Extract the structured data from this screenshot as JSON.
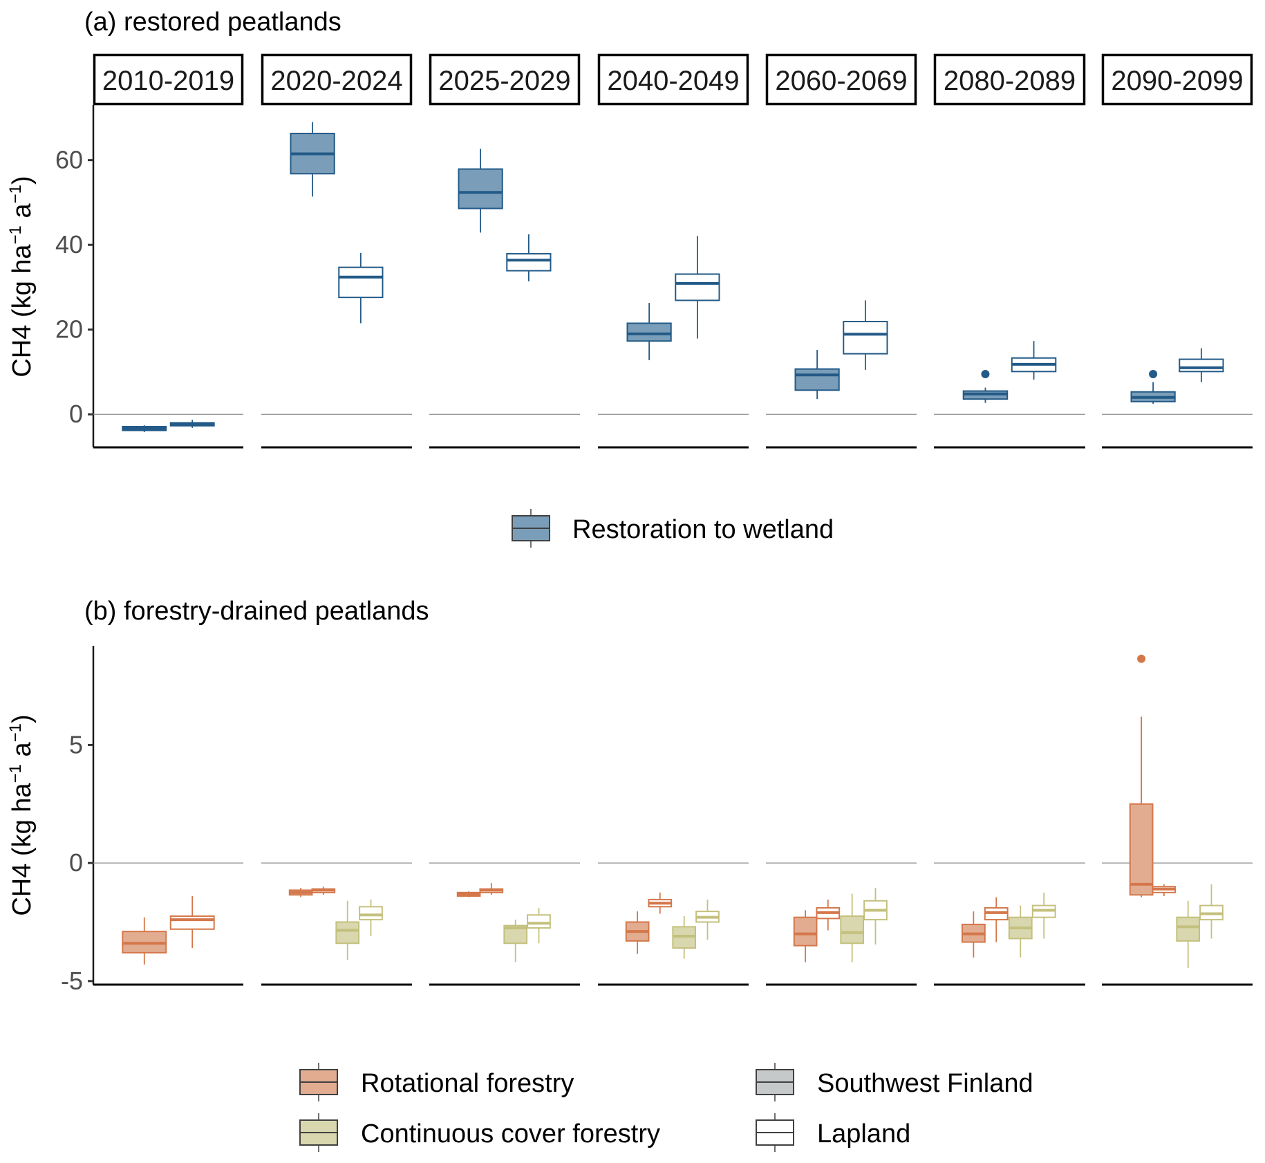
{
  "chart_data": [
    {
      "id": "a",
      "type": "box",
      "title": "(a) restored peatlands",
      "ylabel": "CH4 (kg ha⁻¹ a⁻¹)",
      "ylabel_parts": {
        "main": "CH4 (kg ha",
        "sup1": "−1",
        "mid": " a",
        "sup2": "−1",
        "end": ")"
      },
      "ylim": [
        -7.8,
        73
      ],
      "yticks": [
        0,
        20,
        40,
        60
      ],
      "zero_line": true,
      "facets": [
        "2010-2019",
        "2020-2024",
        "2025-2029",
        "2040-2049",
        "2060-2069",
        "2080-2089",
        "2090-2099"
      ],
      "legend": {
        "placement": "bottom",
        "items": [
          {
            "label": "Restoration to wetland",
            "key": "restoration"
          }
        ]
      },
      "series": [
        {
          "facet": "2010-2019",
          "treatment": "restoration",
          "region": "Southwest Finland",
          "stats": {
            "min": -4.2,
            "q1": -3.8,
            "median": -3.4,
            "q3": -2.9,
            "max": -2.6
          },
          "outliers": []
        },
        {
          "facet": "2010-2019",
          "treatment": "restoration",
          "region": "Lapland",
          "stats": {
            "min": -3.2,
            "q1": -2.7,
            "median": -2.4,
            "q3": -2.0,
            "max": -1.3
          },
          "outliers": []
        },
        {
          "facet": "2020-2024",
          "treatment": "restoration",
          "region": "Southwest Finland",
          "stats": {
            "min": 51.4,
            "q1": 56.8,
            "median": 61.5,
            "q3": 66.3,
            "max": 69.0
          },
          "outliers": []
        },
        {
          "facet": "2020-2024",
          "treatment": "restoration",
          "region": "Lapland",
          "stats": {
            "min": 21.5,
            "q1": 27.6,
            "median": 32.4,
            "q3": 34.7,
            "max": 38.1
          },
          "outliers": []
        },
        {
          "facet": "2025-2029",
          "treatment": "restoration",
          "region": "Southwest Finland",
          "stats": {
            "min": 42.9,
            "q1": 48.6,
            "median": 52.4,
            "q3": 57.9,
            "max": 62.7
          },
          "outliers": []
        },
        {
          "facet": "2025-2029",
          "treatment": "restoration",
          "region": "Lapland",
          "stats": {
            "min": 31.4,
            "q1": 33.9,
            "median": 36.4,
            "q3": 37.9,
            "max": 42.5
          },
          "outliers": []
        },
        {
          "facet": "2040-2049",
          "treatment": "restoration",
          "region": "Southwest Finland",
          "stats": {
            "min": 12.8,
            "q1": 17.3,
            "median": 19.0,
            "q3": 21.5,
            "max": 26.3
          },
          "outliers": []
        },
        {
          "facet": "2040-2049",
          "treatment": "restoration",
          "region": "Lapland",
          "stats": {
            "min": 17.9,
            "q1": 26.9,
            "median": 30.9,
            "q3": 33.1,
            "max": 42.1
          },
          "outliers": []
        },
        {
          "facet": "2060-2069",
          "treatment": "restoration",
          "region": "Southwest Finland",
          "stats": {
            "min": 3.6,
            "q1": 5.7,
            "median": 9.3,
            "q3": 10.7,
            "max": 15.2
          },
          "outliers": []
        },
        {
          "facet": "2060-2069",
          "treatment": "restoration",
          "region": "Lapland",
          "stats": {
            "min": 10.5,
            "q1": 14.3,
            "median": 18.9,
            "q3": 21.9,
            "max": 26.9
          },
          "outliers": []
        },
        {
          "facet": "2080-2089",
          "treatment": "restoration",
          "region": "Southwest Finland",
          "stats": {
            "min": 2.7,
            "q1": 3.6,
            "median": 4.8,
            "q3": 5.5,
            "max": 6.3
          },
          "outliers": [
            9.5
          ]
        },
        {
          "facet": "2080-2089",
          "treatment": "restoration",
          "region": "Lapland",
          "stats": {
            "min": 8.2,
            "q1": 10.1,
            "median": 11.8,
            "q3": 13.3,
            "max": 17.3
          },
          "outliers": []
        },
        {
          "facet": "2090-2099",
          "treatment": "restoration",
          "region": "Southwest Finland",
          "stats": {
            "min": 2.5,
            "q1": 3.0,
            "median": 4.0,
            "q3": 5.3,
            "max": 7.6
          },
          "outliers": [
            9.5
          ]
        },
        {
          "facet": "2090-2099",
          "treatment": "restoration",
          "region": "Lapland",
          "stats": {
            "min": 7.6,
            "q1": 10.1,
            "median": 11.0,
            "q3": 13.0,
            "max": 15.6
          },
          "outliers": []
        }
      ]
    },
    {
      "id": "b",
      "type": "box",
      "title": "(b) forestry-drained peatlands",
      "ylabel": "CH4 (kg ha⁻¹ a⁻¹)",
      "ylabel_parts": {
        "main": "CH4 (kg ha",
        "sup1": "−1",
        "mid": " a",
        "sup2": "−1",
        "end": ")"
      },
      "ylim": [
        -5.15,
        9.2
      ],
      "yticks": [
        -5,
        0,
        5
      ],
      "zero_line": true,
      "facets": [
        "2010-2019",
        "2020-2024",
        "2025-2029",
        "2040-2049",
        "2060-2069",
        "2080-2089",
        "2090-2099"
      ],
      "legend": {
        "placement": "bottom",
        "items": [
          {
            "label": "Rotational forestry",
            "key": "rotational"
          },
          {
            "label": "Continuous cover forestry",
            "key": "ccf"
          },
          {
            "label": "Southwest Finland",
            "key": "southwest"
          },
          {
            "label": "Lapland",
            "key": "lapland"
          }
        ]
      },
      "series": [
        {
          "facet": "2010-2019",
          "treatment": "rotational",
          "region": "Southwest Finland",
          "stats": {
            "min": -4.3,
            "q1": -3.8,
            "median": -3.4,
            "q3": -2.9,
            "max": -2.3
          },
          "outliers": []
        },
        {
          "facet": "2010-2019",
          "treatment": "rotational",
          "region": "Lapland",
          "stats": {
            "min": -3.6,
            "q1": -2.8,
            "median": -2.4,
            "q3": -2.25,
            "max": -1.4
          },
          "outliers": []
        },
        {
          "facet": "2020-2024",
          "treatment": "rotational",
          "region": "Southwest Finland",
          "stats": {
            "min": -1.45,
            "q1": -1.35,
            "median": -1.25,
            "q3": -1.15,
            "max": -1.05
          },
          "outliers": []
        },
        {
          "facet": "2020-2024",
          "treatment": "rotational",
          "region": "Lapland",
          "stats": {
            "min": -1.35,
            "q1": -1.25,
            "median": -1.15,
            "q3": -1.1,
            "max": -1.0
          },
          "outliers": []
        },
        {
          "facet": "2020-2024",
          "treatment": "ccf",
          "region": "Southwest Finland",
          "stats": {
            "min": -4.1,
            "q1": -3.4,
            "median": -2.85,
            "q3": -2.5,
            "max": -1.6
          },
          "outliers": []
        },
        {
          "facet": "2020-2024",
          "treatment": "ccf",
          "region": "Lapland",
          "stats": {
            "min": -3.1,
            "q1": -2.4,
            "median": -2.2,
            "q3": -1.85,
            "max": -1.55
          },
          "outliers": []
        },
        {
          "facet": "2025-2029",
          "treatment": "rotational",
          "region": "Southwest Finland",
          "stats": {
            "min": -1.45,
            "q1": -1.4,
            "median": -1.33,
            "q3": -1.25,
            "max": -1.2
          },
          "outliers": []
        },
        {
          "facet": "2025-2029",
          "treatment": "rotational",
          "region": "Lapland",
          "stats": {
            "min": -1.35,
            "q1": -1.25,
            "median": -1.15,
            "q3": -1.1,
            "max": -0.85
          },
          "outliers": []
        },
        {
          "facet": "2025-2029",
          "treatment": "ccf",
          "region": "Southwest Finland",
          "stats": {
            "min": -4.2,
            "q1": -3.4,
            "median": -2.75,
            "q3": -2.65,
            "max": -2.4
          },
          "outliers": []
        },
        {
          "facet": "2025-2029",
          "treatment": "ccf",
          "region": "Lapland",
          "stats": {
            "min": -3.4,
            "q1": -2.75,
            "median": -2.55,
            "q3": -2.2,
            "max": -1.9
          },
          "outliers": []
        },
        {
          "facet": "2040-2049",
          "treatment": "rotational",
          "region": "Southwest Finland",
          "stats": {
            "min": -3.85,
            "q1": -3.3,
            "median": -2.9,
            "q3": -2.5,
            "max": -2.05
          },
          "outliers": []
        },
        {
          "facet": "2040-2049",
          "treatment": "rotational",
          "region": "Lapland",
          "stats": {
            "min": -2.15,
            "q1": -1.85,
            "median": -1.7,
            "q3": -1.55,
            "max": -1.25
          },
          "outliers": []
        },
        {
          "facet": "2040-2049",
          "treatment": "ccf",
          "region": "Southwest Finland",
          "stats": {
            "min": -4.05,
            "q1": -3.6,
            "median": -3.1,
            "q3": -2.7,
            "max": -2.25
          },
          "outliers": []
        },
        {
          "facet": "2040-2049",
          "treatment": "ccf",
          "region": "Lapland",
          "stats": {
            "min": -3.25,
            "q1": -2.5,
            "median": -2.3,
            "q3": -2.05,
            "max": -1.55
          },
          "outliers": []
        },
        {
          "facet": "2060-2069",
          "treatment": "rotational",
          "region": "Southwest Finland",
          "stats": {
            "min": -4.2,
            "q1": -3.5,
            "median": -3.0,
            "q3": -2.3,
            "max": -2.0
          },
          "outliers": []
        },
        {
          "facet": "2060-2069",
          "treatment": "rotational",
          "region": "Lapland",
          "stats": {
            "min": -2.85,
            "q1": -2.35,
            "median": -2.1,
            "q3": -1.9,
            "max": -1.55
          },
          "outliers": []
        },
        {
          "facet": "2060-2069",
          "treatment": "ccf",
          "region": "Southwest Finland",
          "stats": {
            "min": -4.2,
            "q1": -3.4,
            "median": -2.95,
            "q3": -2.25,
            "max": -1.3
          },
          "outliers": []
        },
        {
          "facet": "2060-2069",
          "treatment": "ccf",
          "region": "Lapland",
          "stats": {
            "min": -3.45,
            "q1": -2.4,
            "median": -2.0,
            "q3": -1.6,
            "max": -1.05
          },
          "outliers": []
        },
        {
          "facet": "2080-2089",
          "treatment": "rotational",
          "region": "Southwest Finland",
          "stats": {
            "min": -4.0,
            "q1": -3.35,
            "median": -3.0,
            "q3": -2.6,
            "max": -2.05
          },
          "outliers": []
        },
        {
          "facet": "2080-2089",
          "treatment": "rotational",
          "region": "Lapland",
          "stats": {
            "min": -3.35,
            "q1": -2.4,
            "median": -2.1,
            "q3": -1.9,
            "max": -1.45
          },
          "outliers": []
        },
        {
          "facet": "2080-2089",
          "treatment": "ccf",
          "region": "Southwest Finland",
          "stats": {
            "min": -4.0,
            "q1": -3.2,
            "median": -2.75,
            "q3": -2.3,
            "max": -1.8
          },
          "outliers": []
        },
        {
          "facet": "2080-2089",
          "treatment": "ccf",
          "region": "Lapland",
          "stats": {
            "min": -3.2,
            "q1": -2.3,
            "median": -2.0,
            "q3": -1.8,
            "max": -1.25
          },
          "outliers": []
        },
        {
          "facet": "2090-2099",
          "treatment": "rotational",
          "region": "Southwest Finland",
          "stats": {
            "min": -1.45,
            "q1": -1.35,
            "median": -0.9,
            "q3": 2.5,
            "max": 6.2
          },
          "outliers": [
            8.65
          ]
        },
        {
          "facet": "2090-2099",
          "treatment": "rotational",
          "region": "Lapland",
          "stats": {
            "min": -1.4,
            "q1": -1.25,
            "median": -1.1,
            "q3": -1.0,
            "max": -0.9
          },
          "outliers": []
        },
        {
          "facet": "2090-2099",
          "treatment": "ccf",
          "region": "Southwest Finland",
          "stats": {
            "min": -4.45,
            "q1": -3.3,
            "median": -2.7,
            "q3": -2.3,
            "max": -1.6
          },
          "outliers": []
        },
        {
          "facet": "2090-2099",
          "treatment": "ccf",
          "region": "Lapland",
          "stats": {
            "min": -3.2,
            "q1": -2.4,
            "median": -2.15,
            "q3": -1.8,
            "max": -0.9
          },
          "outliers": []
        }
      ]
    }
  ],
  "colors": {
    "restoration": {
      "stroke": "#235a87",
      "fill": "#7a9eb9"
    },
    "rotational": {
      "stroke": "#d4774a",
      "fill": "#e2ac91"
    },
    "ccf": {
      "stroke": "#c4c07d",
      "fill": "#d9d7ae"
    },
    "southwest": {
      "stroke": "#404040",
      "fill": "#c6c9c9"
    },
    "lapland": {
      "stroke": "#404040",
      "fill": "#ffffff"
    },
    "legend_stroke": "#404040",
    "zero_line": "#8c8c8c",
    "axis": "#1a1a1a",
    "tick_label": "#4d4d4d"
  }
}
